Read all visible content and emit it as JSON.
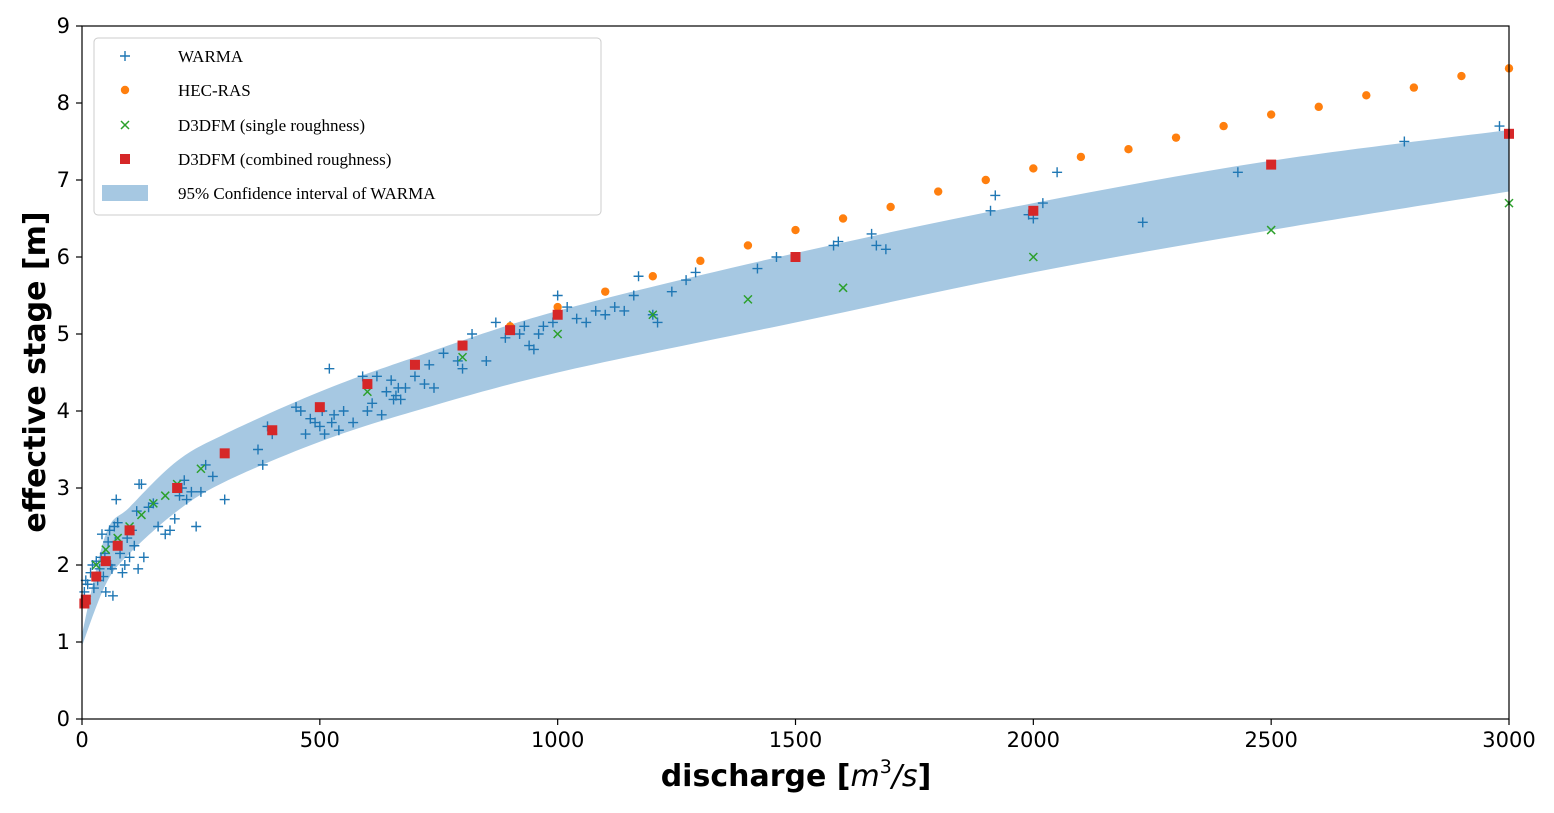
{
  "chart_data": {
    "type": "scatter",
    "xlabel": "discharge",
    "xlabel_unit": {
      "open": " [",
      "base": "m",
      "sup": "3",
      "rest": "/s",
      "close": "]"
    },
    "ylabel": "effective stage [m]",
    "xlim": [
      0,
      3000
    ],
    "ylim": [
      0,
      9
    ],
    "x_ticks": [
      0,
      500,
      1000,
      1500,
      2000,
      2500,
      3000
    ],
    "y_ticks": [
      0,
      1,
      2,
      3,
      4,
      5,
      6,
      7,
      8,
      9
    ],
    "grid": false,
    "legend_position": "top-left",
    "colors": {
      "warma": "#1f77b4",
      "hecras": "#ff7f0e",
      "single": "#2ca02c",
      "combined": "#d62728",
      "band": "#a6c8e2"
    },
    "legend": [
      {
        "key": "warma",
        "label": "WARMA",
        "marker": "plus"
      },
      {
        "key": "hecras",
        "label": "HEC-RAS",
        "marker": "circle"
      },
      {
        "key": "single",
        "label": "D3DFM (single roughness)",
        "marker": "x"
      },
      {
        "key": "combined",
        "label": "D3DFM (combined roughness)",
        "marker": "square"
      },
      {
        "key": "band",
        "label": "95% Confidence interval of WARMA",
        "marker": "patch"
      }
    ],
    "confidence_band": {
      "name": "95% Confidence interval of WARMA",
      "x": [
        0,
        50,
        100,
        200,
        300,
        500,
        700,
        1000,
        1500,
        2000,
        2500,
        3000
      ],
      "lower": [
        0.95,
        1.75,
        2.15,
        2.7,
        3.08,
        3.6,
        4.0,
        4.5,
        5.15,
        5.8,
        6.35,
        6.85
      ],
      "upper": [
        1.1,
        2.4,
        2.75,
        3.35,
        3.7,
        4.25,
        4.7,
        5.3,
        6.05,
        6.7,
        7.25,
        7.65
      ]
    },
    "series": [
      {
        "name": "WARMA",
        "key": "warma",
        "points": [
          [
            5,
            1.65
          ],
          [
            8,
            1.8
          ],
          [
            12,
            1.75
          ],
          [
            18,
            1.9
          ],
          [
            22,
            2.0
          ],
          [
            25,
            1.7
          ],
          [
            30,
            2.05
          ],
          [
            33,
            1.8
          ],
          [
            37,
            1.95
          ],
          [
            40,
            2.1
          ],
          [
            42,
            2.4
          ],
          [
            45,
            1.85
          ],
          [
            48,
            2.15
          ],
          [
            50,
            1.65
          ],
          [
            55,
            2.3
          ],
          [
            58,
            2.45
          ],
          [
            60,
            2.0
          ],
          [
            63,
            1.95
          ],
          [
            65,
            1.6
          ],
          [
            68,
            2.5
          ],
          [
            70,
            2.3
          ],
          [
            72,
            2.85
          ],
          [
            75,
            2.55
          ],
          [
            80,
            2.15
          ],
          [
            85,
            1.9
          ],
          [
            90,
            2.0
          ],
          [
            95,
            2.35
          ],
          [
            100,
            2.1
          ],
          [
            105,
            2.45
          ],
          [
            110,
            2.25
          ],
          [
            115,
            2.7
          ],
          [
            118,
            1.95
          ],
          [
            120,
            3.05
          ],
          [
            125,
            3.05
          ],
          [
            130,
            2.1
          ],
          [
            140,
            2.75
          ],
          [
            150,
            2.8
          ],
          [
            160,
            2.5
          ],
          [
            175,
            2.4
          ],
          [
            185,
            2.45
          ],
          [
            195,
            2.6
          ],
          [
            205,
            2.9
          ],
          [
            210,
            3.0
          ],
          [
            215,
            3.1
          ],
          [
            220,
            2.85
          ],
          [
            230,
            2.95
          ],
          [
            240,
            2.5
          ],
          [
            250,
            2.95
          ],
          [
            260,
            3.3
          ],
          [
            275,
            3.15
          ],
          [
            300,
            2.85
          ],
          [
            370,
            3.5
          ],
          [
            380,
            3.3
          ],
          [
            390,
            3.8
          ],
          [
            400,
            3.7
          ],
          [
            450,
            4.05
          ],
          [
            460,
            4.0
          ],
          [
            470,
            3.7
          ],
          [
            480,
            3.9
          ],
          [
            490,
            3.85
          ],
          [
            500,
            3.8
          ],
          [
            505,
            4.0
          ],
          [
            510,
            3.7
          ],
          [
            520,
            4.55
          ],
          [
            525,
            3.85
          ],
          [
            530,
            3.95
          ],
          [
            540,
            3.75
          ],
          [
            550,
            4.0
          ],
          [
            570,
            3.85
          ],
          [
            590,
            4.45
          ],
          [
            600,
            4.0
          ],
          [
            610,
            4.1
          ],
          [
            620,
            4.45
          ],
          [
            630,
            3.95
          ],
          [
            640,
            4.25
          ],
          [
            650,
            4.4
          ],
          [
            655,
            4.15
          ],
          [
            660,
            4.2
          ],
          [
            665,
            4.3
          ],
          [
            670,
            4.15
          ],
          [
            680,
            4.3
          ],
          [
            700,
            4.45
          ],
          [
            720,
            4.35
          ],
          [
            730,
            4.6
          ],
          [
            740,
            4.3
          ],
          [
            760,
            4.75
          ],
          [
            790,
            4.65
          ],
          [
            800,
            4.55
          ],
          [
            820,
            5.0
          ],
          [
            850,
            4.65
          ],
          [
            870,
            5.15
          ],
          [
            890,
            4.95
          ],
          [
            900,
            5.1
          ],
          [
            920,
            5.0
          ],
          [
            930,
            5.1
          ],
          [
            940,
            4.85
          ],
          [
            950,
            4.8
          ],
          [
            960,
            5.0
          ],
          [
            970,
            5.1
          ],
          [
            990,
            5.15
          ],
          [
            1000,
            5.5
          ],
          [
            1020,
            5.35
          ],
          [
            1040,
            5.2
          ],
          [
            1060,
            5.15
          ],
          [
            1080,
            5.3
          ],
          [
            1100,
            5.25
          ],
          [
            1120,
            5.35
          ],
          [
            1140,
            5.3
          ],
          [
            1160,
            5.5
          ],
          [
            1170,
            5.75
          ],
          [
            1200,
            5.25
          ],
          [
            1210,
            5.15
          ],
          [
            1240,
            5.55
          ],
          [
            1270,
            5.7
          ],
          [
            1290,
            5.8
          ],
          [
            1420,
            5.85
          ],
          [
            1460,
            6.0
          ],
          [
            1580,
            6.15
          ],
          [
            1590,
            6.2
          ],
          [
            1660,
            6.3
          ],
          [
            1670,
            6.15
          ],
          [
            1690,
            6.1
          ],
          [
            1910,
            6.6
          ],
          [
            1920,
            6.8
          ],
          [
            1990,
            6.55
          ],
          [
            2000,
            6.5
          ],
          [
            2020,
            6.7
          ],
          [
            2050,
            7.1
          ],
          [
            2230,
            6.45
          ],
          [
            2430,
            7.1
          ],
          [
            2780,
            7.5
          ],
          [
            2980,
            7.7
          ]
        ]
      },
      {
        "name": "HEC-RAS",
        "key": "hecras",
        "points": [
          [
            900,
            5.1
          ],
          [
            1000,
            5.35
          ],
          [
            1100,
            5.55
          ],
          [
            1200,
            5.75
          ],
          [
            1300,
            5.95
          ],
          [
            1400,
            6.15
          ],
          [
            1500,
            6.35
          ],
          [
            1600,
            6.5
          ],
          [
            1700,
            6.65
          ],
          [
            1800,
            6.85
          ],
          [
            1900,
            7.0
          ],
          [
            2000,
            7.15
          ],
          [
            2100,
            7.3
          ],
          [
            2200,
            7.4
          ],
          [
            2300,
            7.55
          ],
          [
            2400,
            7.7
          ],
          [
            2500,
            7.85
          ],
          [
            2600,
            7.95
          ],
          [
            2700,
            8.1
          ],
          [
            2800,
            8.2
          ],
          [
            2900,
            8.35
          ],
          [
            3000,
            8.45
          ]
        ]
      },
      {
        "name": "D3DFM (single roughness)",
        "key": "single",
        "points": [
          [
            10,
            1.55
          ],
          [
            30,
            2.0
          ],
          [
            50,
            2.2
          ],
          [
            75,
            2.35
          ],
          [
            100,
            2.5
          ],
          [
            125,
            2.65
          ],
          [
            150,
            2.8
          ],
          [
            175,
            2.9
          ],
          [
            200,
            3.05
          ],
          [
            250,
            3.25
          ],
          [
            600,
            4.25
          ],
          [
            800,
            4.7
          ],
          [
            1000,
            5.0
          ],
          [
            1200,
            5.25
          ],
          [
            1400,
            5.45
          ],
          [
            1600,
            5.6
          ],
          [
            2000,
            6.0
          ],
          [
            2500,
            6.35
          ],
          [
            3000,
            6.7
          ]
        ]
      },
      {
        "name": "D3DFM (combined roughness)",
        "key": "combined",
        "points": [
          [
            5,
            1.5
          ],
          [
            8,
            1.55
          ],
          [
            30,
            1.85
          ],
          [
            50,
            2.05
          ],
          [
            75,
            2.25
          ],
          [
            100,
            2.45
          ],
          [
            200,
            3.0
          ],
          [
            300,
            3.45
          ],
          [
            400,
            3.75
          ],
          [
            500,
            4.05
          ],
          [
            600,
            4.35
          ],
          [
            700,
            4.6
          ],
          [
            800,
            4.85
          ],
          [
            900,
            5.05
          ],
          [
            1000,
            5.25
          ],
          [
            1500,
            6.0
          ],
          [
            2000,
            6.6
          ],
          [
            2500,
            7.2
          ],
          [
            3000,
            7.6
          ]
        ]
      }
    ]
  }
}
